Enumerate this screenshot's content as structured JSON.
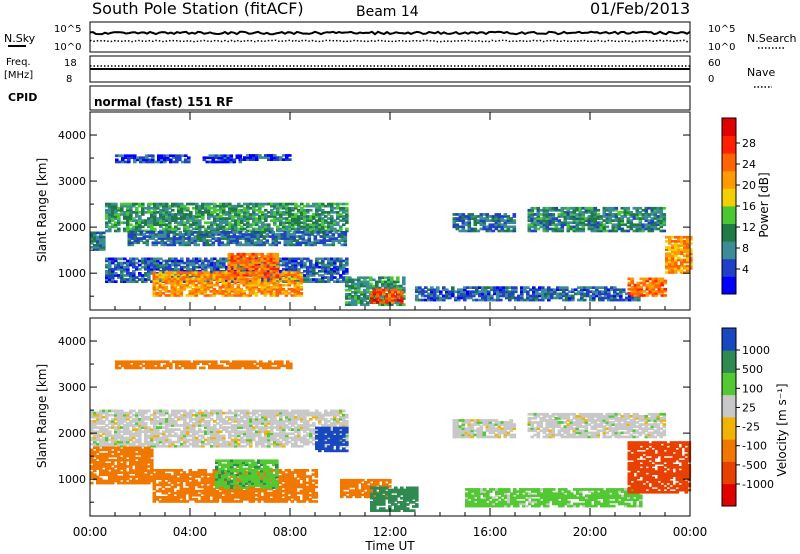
{
  "header": {
    "station": "South Pole Station (fitACF)",
    "beam": "Beam 14",
    "date": "01/Feb/2013"
  },
  "aux_panels": {
    "nsky_label": "N.Sky",
    "nsky_ticks": [
      "10^5",
      "10^0"
    ],
    "nsearch_label": "N.Search",
    "nsearch_ticks": [
      "10^5",
      "10^0"
    ],
    "freq_label": "Freq.",
    "freq_unit": "[MHz]",
    "freq_ticks": [
      "18",
      "8"
    ],
    "nave_label": "Nave",
    "nave_ticks": [
      "60",
      "0"
    ],
    "cpid_label": "CPID",
    "cpid_value": "normal (fast) 151 RF"
  },
  "colorbars": {
    "power": {
      "label": "Power [dB]",
      "ticks": [
        "28",
        "24",
        "20",
        "16",
        "12",
        "8",
        "4"
      ],
      "colors": [
        "#0000ff",
        "#2040c8",
        "#3c8c96",
        "#1e7a46",
        "#49c832",
        "#f0d000",
        "#ff9a00",
        "#ff6400",
        "#ff2000",
        "#e00000"
      ]
    },
    "velocity": {
      "label": "Velocity [m s⁻¹]",
      "ticks": [
        "1000",
        "500",
        "100",
        "25",
        "-25",
        "-100",
        "-500",
        "-1000"
      ],
      "colors": [
        "#1848c0",
        "#2e8a50",
        "#52c832",
        "#c8c8c8",
        "#f0b400",
        "#f07800",
        "#e84000",
        "#e00000"
      ]
    }
  },
  "chart_data": [
    {
      "type": "heatmap",
      "panel": "power",
      "ylabel": "Slant Range [km]",
      "xlim": [
        "00:00",
        "24:00"
      ],
      "ylim": [
        200,
        4500
      ],
      "yticks": [
        "1000",
        "2000",
        "3000",
        "4000"
      ],
      "regions": [
        {
          "t": [
            0.0,
            0.6
          ],
          "r": [
            1500,
            1900
          ],
          "dB": 10
        },
        {
          "t": [
            0.6,
            10.2
          ],
          "r": [
            1900,
            2500
          ],
          "dB": 12
        },
        {
          "t": [
            1.5,
            10.2
          ],
          "r": [
            1600,
            1900
          ],
          "dB": 9
        },
        {
          "t": [
            0.6,
            10.2
          ],
          "r": [
            800,
            1300
          ],
          "dB": 8
        },
        {
          "t": [
            2.5,
            8.5
          ],
          "r": [
            500,
            1000
          ],
          "dB": 22
        },
        {
          "t": [
            5.5,
            7.5
          ],
          "r": [
            900,
            1400
          ],
          "dB": 24
        },
        {
          "t": [
            10.2,
            12.5
          ],
          "r": [
            300,
            900
          ],
          "dB": 12
        },
        {
          "t": [
            11.2,
            12.5
          ],
          "r": [
            350,
            650
          ],
          "dB": 26
        },
        {
          "t": [
            14.5,
            17.0
          ],
          "r": [
            1900,
            2300
          ],
          "dB": 9
        },
        {
          "t": [
            17.5,
            23.0
          ],
          "r": [
            1900,
            2400
          ],
          "dB": 11
        },
        {
          "t": [
            13.0,
            22.0
          ],
          "r": [
            400,
            700
          ],
          "dB": 8
        },
        {
          "t": [
            21.5,
            23.0
          ],
          "r": [
            500,
            900
          ],
          "dB": 24
        },
        {
          "t": [
            23.0,
            24.0
          ],
          "r": [
            1000,
            1800
          ],
          "dB": 22
        },
        {
          "t": [
            1.0,
            4.0
          ],
          "r": [
            3400,
            3550
          ],
          "dB": 6
        },
        {
          "t": [
            4.5,
            6.0
          ],
          "r": [
            3400,
            3550
          ],
          "dB": 5
        },
        {
          "t": [
            6.0,
            8.0
          ],
          "r": [
            3450,
            3550
          ],
          "dB": 6
        }
      ]
    },
    {
      "type": "heatmap",
      "panel": "velocity",
      "xlabel": "Time UT",
      "ylabel": "Slant Range [km]",
      "xticks": [
        "00:00",
        "04:00",
        "08:00",
        "12:00",
        "16:00",
        "20:00",
        "00:00"
      ],
      "xlim": [
        "00:00",
        "24:00"
      ],
      "ylim": [
        200,
        4500
      ],
      "yticks": [
        "1000",
        "2000",
        "3000",
        "4000"
      ],
      "regions": [
        {
          "t": [
            0.0,
            10.2
          ],
          "r": [
            1700,
            2500
          ],
          "v": 0
        },
        {
          "t": [
            0.0,
            2.5
          ],
          "r": [
            900,
            1700
          ],
          "v": -150
        },
        {
          "t": [
            2.5,
            9.0
          ],
          "r": [
            500,
            1200
          ],
          "v": -300
        },
        {
          "t": [
            5.0,
            7.5
          ],
          "r": [
            800,
            1400
          ],
          "v": 80
        },
        {
          "t": [
            9.0,
            10.2
          ],
          "r": [
            1600,
            2100
          ],
          "v": 600
        },
        {
          "t": [
            10.0,
            12.0
          ],
          "r": [
            600,
            1000
          ],
          "v": -200
        },
        {
          "t": [
            11.2,
            13.0
          ],
          "r": [
            300,
            800
          ],
          "v": 200
        },
        {
          "t": [
            14.5,
            17.0
          ],
          "r": [
            1900,
            2300
          ],
          "v": 0
        },
        {
          "t": [
            17.5,
            23.0
          ],
          "r": [
            1900,
            2400
          ],
          "v": 0
        },
        {
          "t": [
            15.0,
            22.0
          ],
          "r": [
            400,
            800
          ],
          "v": 50
        },
        {
          "t": [
            21.5,
            24.0
          ],
          "r": [
            700,
            1800
          ],
          "v": -600
        },
        {
          "t": [
            1.0,
            8.0
          ],
          "r": [
            3400,
            3550
          ],
          "v": -150
        }
      ]
    }
  ]
}
